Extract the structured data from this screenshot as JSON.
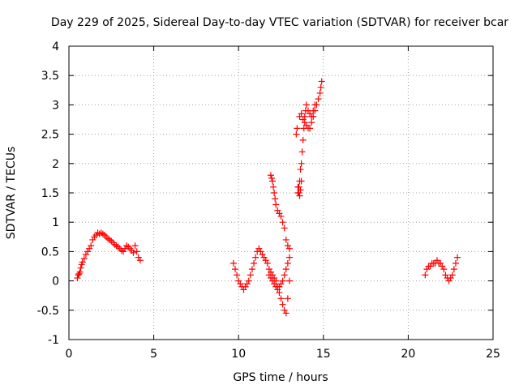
{
  "chart_data": {
    "type": "scatter",
    "title": "Day 229 of 2025, Sidereal Day-to-day VTEC variation (SDTVAR) for receiver bcar",
    "xlabel": "GPS time / hours",
    "ylabel": "SDTVAR / TECUs",
    "xlim": [
      0,
      25
    ],
    "ylim": [
      -1,
      4
    ],
    "xticks": [
      0,
      5,
      10,
      15,
      20,
      25
    ],
    "yticks": [
      -1,
      -0.5,
      0,
      0.5,
      1,
      1.5,
      2,
      2.5,
      3,
      3.5,
      4
    ],
    "xtick_labels": [
      "0",
      "5",
      "10",
      "15",
      "20",
      "25"
    ],
    "ytick_labels": [
      "-1",
      "-0.5",
      "0",
      "0.5",
      "1",
      "1.5",
      "2",
      "2.5",
      "3",
      "3.5",
      "4"
    ],
    "grid": true,
    "marker": "+",
    "series": [
      {
        "name": "SDTVAR",
        "color": "#ff0000",
        "x": [
          0.5,
          0.55,
          0.6,
          0.65,
          0.7,
          0.75,
          0.8,
          0.9,
          1.0,
          1.1,
          1.2,
          1.3,
          1.4,
          1.5,
          1.6,
          1.7,
          1.8,
          1.9,
          2.0,
          2.1,
          2.2,
          2.3,
          2.4,
          2.5,
          2.6,
          2.7,
          2.8,
          2.9,
          3.0,
          3.1,
          3.2,
          3.3,
          3.4,
          3.5,
          3.6,
          3.7,
          3.8,
          3.9,
          4.0,
          4.1,
          4.2,
          9.7,
          9.8,
          9.9,
          10.0,
          10.1,
          10.2,
          10.3,
          10.4,
          10.5,
          10.6,
          10.7,
          10.8,
          10.9,
          11.0,
          11.1,
          11.2,
          11.3,
          11.4,
          11.5,
          11.6,
          11.7,
          11.8,
          11.9,
          12.0,
          12.1,
          12.2,
          12.3,
          12.4,
          12.5,
          12.6,
          12.7,
          12.8,
          12.9,
          13.0,
          11.9,
          11.95,
          12.0,
          12.05,
          12.1,
          12.15,
          12.2,
          12.3,
          12.4,
          12.5,
          12.6,
          12.7,
          12.8,
          12.9,
          13.0,
          11.8,
          11.9,
          12.0,
          12.1,
          12.2,
          12.3,
          12.4,
          12.5,
          12.6,
          12.7,
          12.8,
          12.9,
          13.0,
          13.4,
          13.45,
          13.5,
          13.55,
          13.6,
          13.65,
          13.7,
          13.75,
          13.8,
          13.85,
          13.9,
          13.95,
          14.0,
          14.1,
          14.2,
          14.3,
          14.4,
          14.5,
          14.6,
          14.7,
          14.8,
          14.85,
          14.9,
          13.6,
          13.7,
          13.8,
          13.9,
          14.0,
          14.1,
          14.2,
          14.3,
          14.4,
          14.5,
          13.5,
          13.55,
          13.6,
          13.65,
          13.7,
          21.0,
          21.1,
          21.2,
          21.3,
          21.4,
          21.5,
          21.6,
          21.7,
          21.8,
          21.9,
          22.0,
          22.1,
          22.2,
          22.3,
          22.4,
          22.5,
          22.6,
          22.7,
          22.8,
          22.9
        ],
        "y": [
          0.05,
          0.1,
          0.12,
          0.15,
          0.22,
          0.28,
          0.32,
          0.38,
          0.45,
          0.5,
          0.55,
          0.6,
          0.7,
          0.75,
          0.78,
          0.82,
          0.8,
          0.82,
          0.8,
          0.78,
          0.75,
          0.72,
          0.7,
          0.68,
          0.65,
          0.62,
          0.6,
          0.58,
          0.55,
          0.52,
          0.5,
          0.55,
          0.6,
          0.58,
          0.55,
          0.52,
          0.48,
          0.6,
          0.5,
          0.4,
          0.35,
          0.3,
          0.2,
          0.1,
          0.0,
          -0.05,
          -0.1,
          -0.15,
          -0.1,
          -0.05,
          0.0,
          0.1,
          0.2,
          0.3,
          0.4,
          0.5,
          0.55,
          0.5,
          0.45,
          0.4,
          0.35,
          0.3,
          0.2,
          0.15,
          0.1,
          0.05,
          0.0,
          -0.1,
          -0.2,
          -0.3,
          -0.4,
          -0.5,
          -0.55,
          -0.3,
          0.0,
          1.8,
          1.75,
          1.7,
          1.6,
          1.5,
          1.4,
          1.3,
          1.2,
          1.15,
          1.1,
          1.0,
          0.9,
          0.7,
          0.6,
          0.55,
          0.1,
          0.05,
          0.0,
          -0.05,
          -0.1,
          -0.15,
          -0.1,
          -0.05,
          0.0,
          0.1,
          0.2,
          0.3,
          0.4,
          2.5,
          2.6,
          1.5,
          1.6,
          1.7,
          1.9,
          2.0,
          2.2,
          2.4,
          2.6,
          2.8,
          2.9,
          3.0,
          2.9,
          2.85,
          2.8,
          2.9,
          3.0,
          3.0,
          3.1,
          3.2,
          3.3,
          3.4,
          2.8,
          2.85,
          2.75,
          2.7,
          2.65,
          2.6,
          2.6,
          2.7,
          2.8,
          2.9,
          1.6,
          1.5,
          1.45,
          1.55,
          1.7,
          0.1,
          0.2,
          0.25,
          0.25,
          0.3,
          0.3,
          0.3,
          0.35,
          0.3,
          0.3,
          0.25,
          0.2,
          0.1,
          0.05,
          0.0,
          0.05,
          0.1,
          0.2,
          0.3,
          0.4
        ]
      }
    ]
  }
}
